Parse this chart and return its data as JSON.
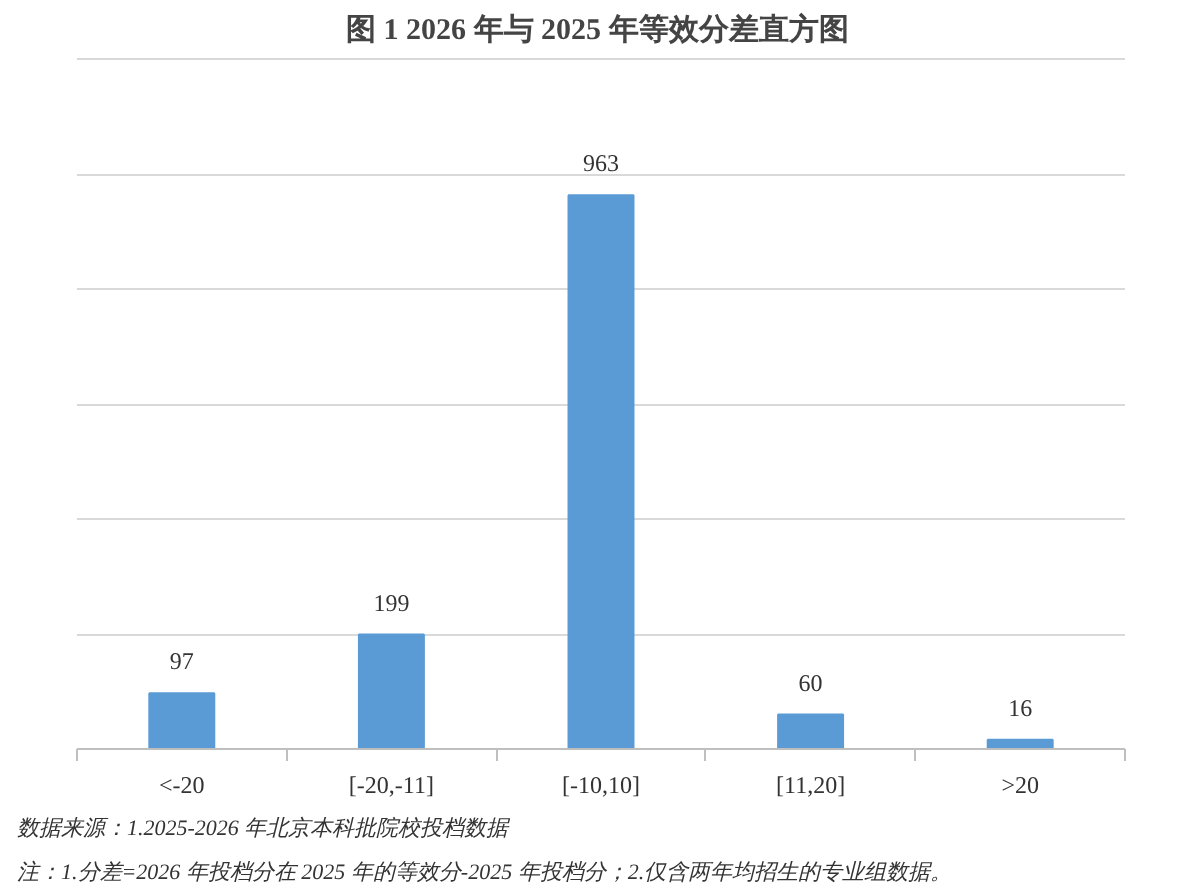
{
  "chart_data": {
    "type": "bar",
    "title": "图 1  2026 年与 2025 年等效分差直方图",
    "categories": [
      "<-20",
      "[-20,-11]",
      "[-10,10]",
      "[11,20]",
      ">20"
    ],
    "values": [
      97,
      199,
      963,
      60,
      16
    ],
    "color": "#5b9bd5",
    "data_labels": true,
    "yticks": [
      {
        "value": 0,
        "label": null
      },
      {
        "value": 200,
        "label": null
      },
      {
        "value": 400,
        "label": null
      },
      {
        "value": 600,
        "label": null
      },
      {
        "value": 800,
        "label": null
      },
      {
        "value": 1000,
        "label": null
      },
      {
        "value": 1200,
        "label": null
      }
    ],
    "grid": "y",
    "tick_labels": "x",
    "annotations": [
      "数据来源：1.2025-2026 年北京本科批院校投档数据",
      "注：1.分差=2026 年投档分在 2025 年的等效分-2025 年投档分；2.仅含两年均招生的专业组数据。"
    ]
  }
}
